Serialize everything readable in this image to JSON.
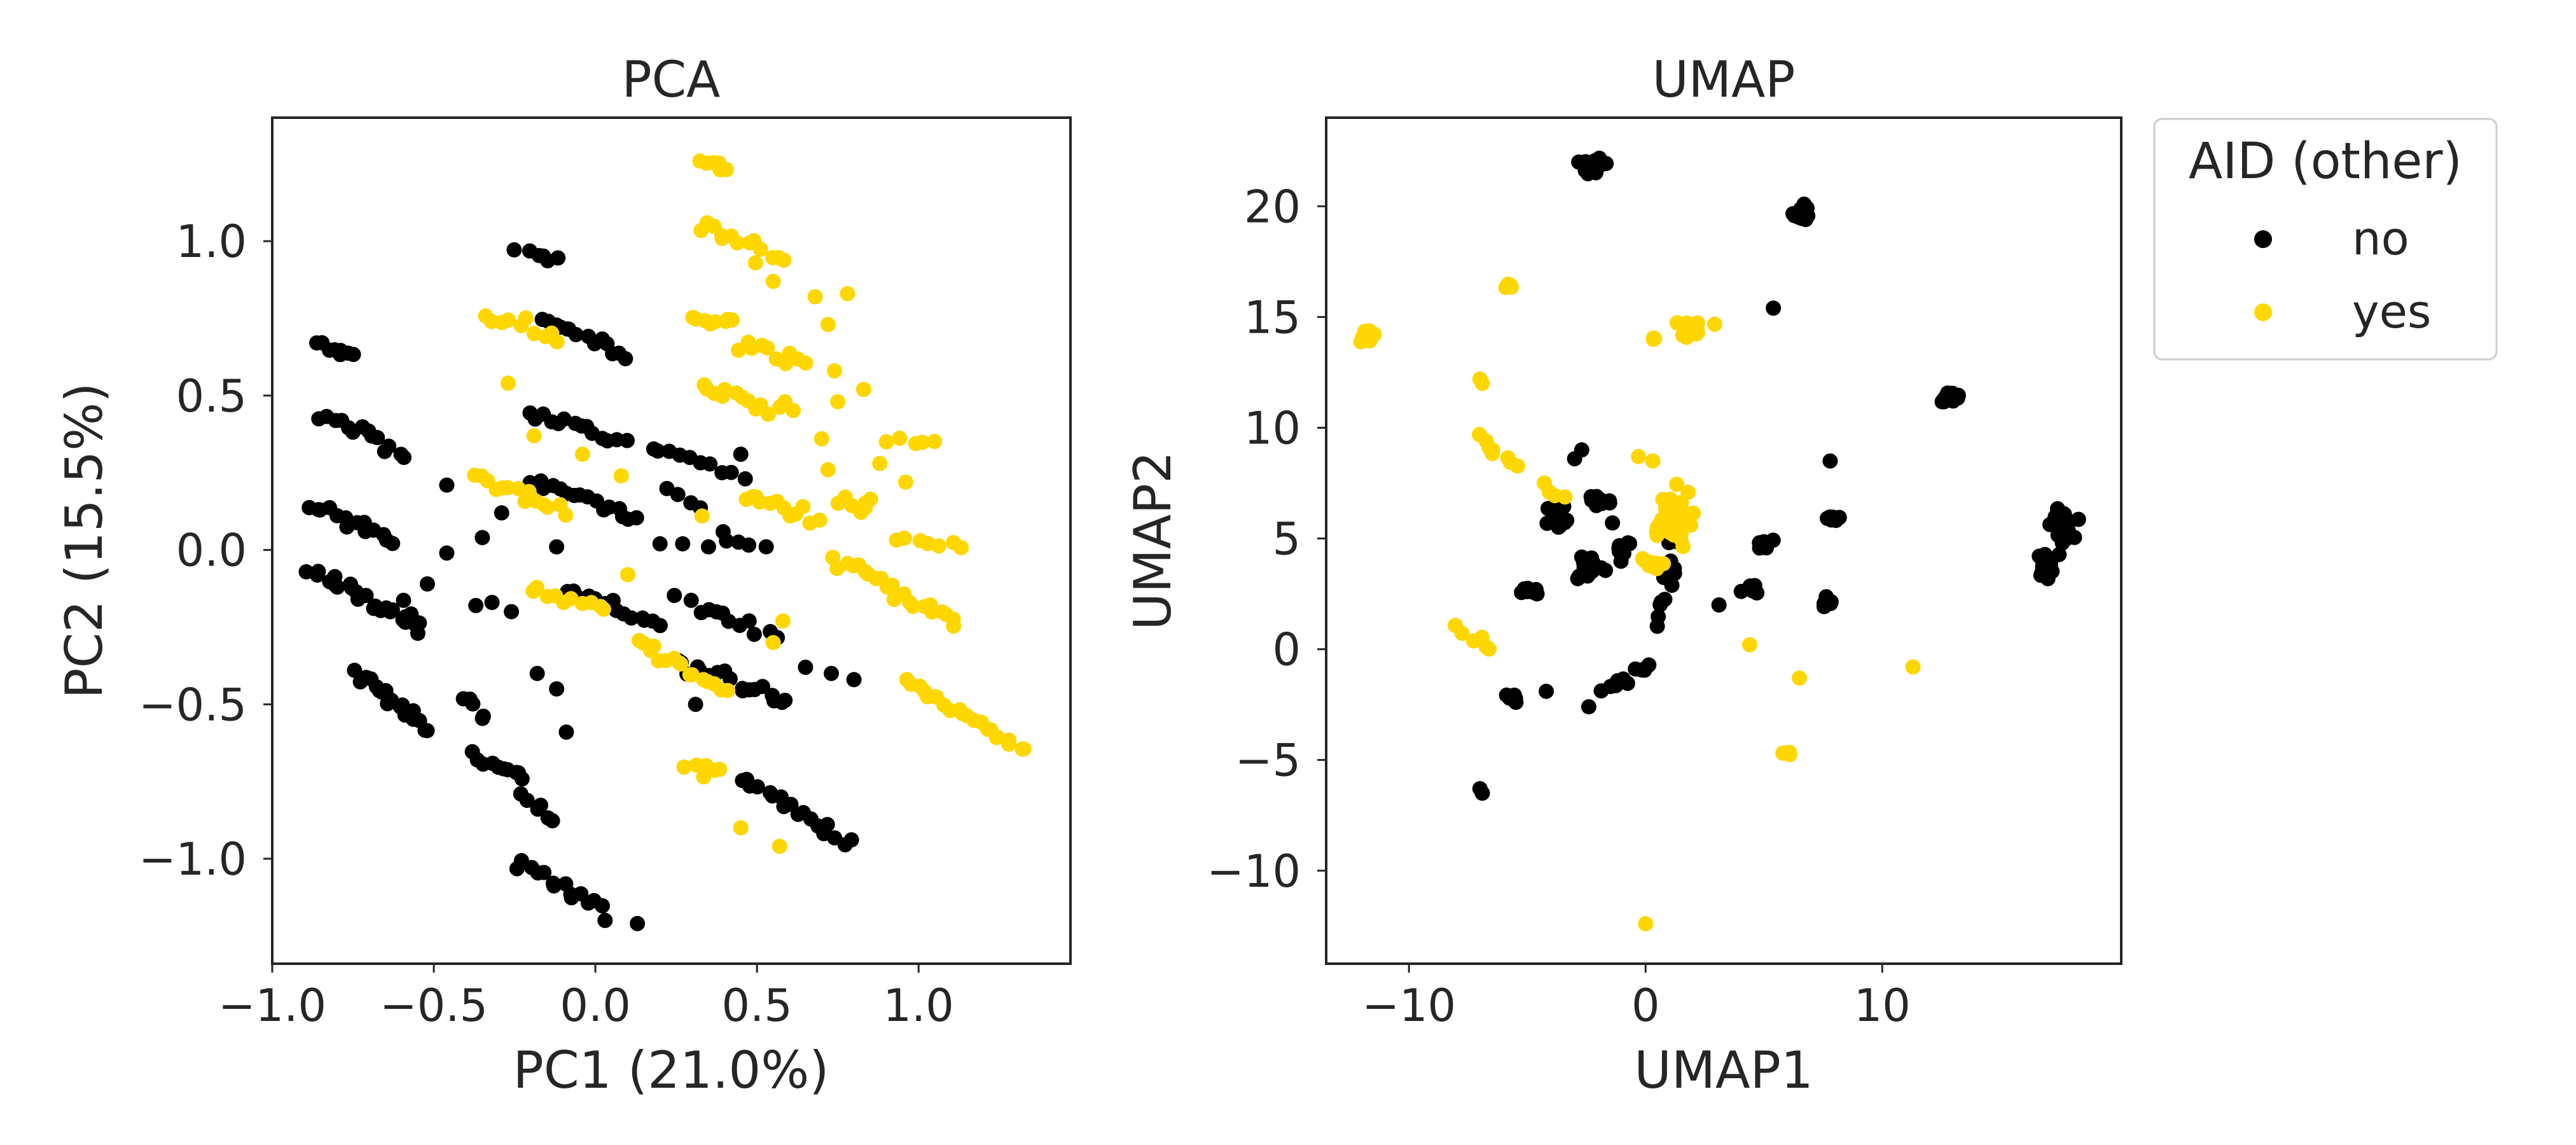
{
  "colors": {
    "no": "#000000",
    "yes": "#FFD700",
    "axes": "#262626"
  },
  "legend": {
    "title": "AID (other)",
    "placement": "outside-right-top",
    "entries": [
      {
        "label": "no",
        "color": "#000000"
      },
      {
        "label": "yes",
        "color": "#FFD700"
      }
    ]
  },
  "chart_data": [
    {
      "type": "scatter",
      "title": "PCA",
      "xlabel": "PC1 (21.0%)",
      "ylabel": "PC2 (15.5%)",
      "xlim": [
        -1.0,
        1.47
      ],
      "ylim": [
        -1.34,
        1.4
      ],
      "xticks": [
        -1.0,
        -0.5,
        0.0,
        0.5,
        1.0
      ],
      "xtick_labels": [
        "−1.0",
        "−0.5",
        "0.0",
        "0.5",
        "1.0"
      ],
      "yticks": [
        -1.0,
        -0.5,
        0.0,
        0.5,
        1.0
      ],
      "ytick_labels": [
        "−1.0",
        "−0.5",
        "0.0",
        "0.5",
        "1.0"
      ],
      "grid": false,
      "series": [
        {
          "name": "no",
          "segments": [
            {
              "x0": -0.86,
              "y0": 0.66,
              "x1": -0.74,
              "y1": 0.63,
              "n": 8
            },
            {
              "x0": -0.85,
              "y0": 0.44,
              "x1": -0.59,
              "y1": 0.32,
              "n": 14
            },
            {
              "x0": -0.88,
              "y0": 0.14,
              "x1": -0.62,
              "y1": 0.03,
              "n": 14
            },
            {
              "x0": -0.88,
              "y0": -0.07,
              "x1": -0.55,
              "y1": -0.24,
              "n": 22
            },
            {
              "x0": -0.74,
              "y0": -0.4,
              "x1": -0.52,
              "y1": -0.58,
              "n": 18
            },
            {
              "x0": -0.4,
              "y0": -0.48,
              "x1": -0.35,
              "y1": -0.55,
              "n": 5
            },
            {
              "x0": -0.38,
              "y0": -0.66,
              "x1": -0.22,
              "y1": -0.75,
              "n": 10
            },
            {
              "x0": -0.23,
              "y0": -0.8,
              "x1": -0.12,
              "y1": -0.88,
              "n": 6
            },
            {
              "x0": -0.24,
              "y0": -1.02,
              "x1": 0.02,
              "y1": -1.15,
              "n": 14
            },
            {
              "x0": -0.24,
              "y0": 0.96,
              "x1": -0.11,
              "y1": 0.95,
              "n": 6
            },
            {
              "x0": -0.17,
              "y0": 0.75,
              "x1": 0.09,
              "y1": 0.63,
              "n": 14
            },
            {
              "x0": -0.21,
              "y0": 0.45,
              "x1": 0.09,
              "y1": 0.35,
              "n": 14
            },
            {
              "x0": -0.2,
              "y0": 0.23,
              "x1": 0.14,
              "y1": 0.1,
              "n": 16
            },
            {
              "x0": -0.09,
              "y0": -0.12,
              "x1": 0.2,
              "y1": -0.25,
              "n": 14
            },
            {
              "x0": 0.27,
              "y0": -0.16,
              "x1": 0.55,
              "y1": -0.27,
              "n": 12
            },
            {
              "x0": 0.25,
              "y0": -0.36,
              "x1": 0.6,
              "y1": -0.5,
              "n": 18
            },
            {
              "x0": 0.45,
              "y0": -0.73,
              "x1": 0.78,
              "y1": -0.95,
              "n": 18
            },
            {
              "x0": 0.16,
              "y0": 0.33,
              "x1": 0.46,
              "y1": 0.24,
              "n": 10
            },
            {
              "x0": 0.22,
              "y0": 0.18,
              "x1": 0.33,
              "y1": 0.15,
              "n": 4
            },
            {
              "x0": 0.38,
              "y0": 0.04,
              "x1": 0.52,
              "y1": 0.02,
              "n": 5
            },
            {
              "x0": -0.6,
              "y0": -0.15,
              "x1": -0.55,
              "y1": -0.28,
              "n": 4
            }
          ],
          "points": [
            [
              -0.46,
              0.21
            ],
            [
              -0.35,
              0.04
            ],
            [
              -0.46,
              -0.01
            ],
            [
              -0.52,
              -0.11
            ],
            [
              -0.37,
              -0.18
            ],
            [
              -0.32,
              -0.17
            ],
            [
              -0.26,
              -0.2
            ],
            [
              -0.18,
              -0.4
            ],
            [
              -0.12,
              -0.45
            ],
            [
              -0.09,
              -0.59
            ],
            [
              0.03,
              -1.2
            ],
            [
              0.13,
              -1.21
            ],
            [
              -0.29,
              0.12
            ],
            [
              -0.12,
              0.01
            ],
            [
              0.2,
              0.02
            ],
            [
              0.27,
              0.02
            ],
            [
              0.35,
              0.01
            ],
            [
              0.45,
              0.31
            ],
            [
              0.65,
              -0.38
            ],
            [
              0.73,
              -0.4
            ],
            [
              0.8,
              -0.42
            ],
            [
              0.31,
              -0.5
            ]
          ]
        },
        {
          "name": "yes",
          "segments": [
            {
              "x0": 0.33,
              "y0": 1.27,
              "x1": 0.41,
              "y1": 1.23,
              "n": 7
            },
            {
              "x0": 0.33,
              "y0": 1.05,
              "x1": 0.58,
              "y1": 0.93,
              "n": 14
            },
            {
              "x0": 0.3,
              "y0": 0.75,
              "x1": 0.43,
              "y1": 0.74,
              "n": 8
            },
            {
              "x0": 0.33,
              "y0": 0.53,
              "x1": 0.6,
              "y1": 0.45,
              "n": 14
            },
            {
              "x0": 0.45,
              "y0": 0.67,
              "x1": 0.65,
              "y1": 0.6,
              "n": 10
            },
            {
              "x0": 0.46,
              "y0": 0.18,
              "x1": 0.68,
              "y1": 0.1,
              "n": 12
            },
            {
              "x0": 0.75,
              "y0": 0.15,
              "x1": 0.86,
              "y1": 0.15,
              "n": 7
            },
            {
              "x0": 0.74,
              "y0": -0.03,
              "x1": 1.12,
              "y1": -0.24,
              "n": 22
            },
            {
              "x0": 0.96,
              "y0": -0.42,
              "x1": 1.33,
              "y1": -0.65,
              "n": 22
            },
            {
              "x0": -0.34,
              "y0": 0.76,
              "x1": -0.11,
              "y1": 0.68,
              "n": 10
            },
            {
              "x0": -0.37,
              "y0": 0.24,
              "x1": -0.1,
              "y1": 0.12,
              "n": 14
            },
            {
              "x0": -0.2,
              "y0": -0.13,
              "x1": 0.03,
              "y1": -0.2,
              "n": 10
            },
            {
              "x0": 0.13,
              "y0": -0.3,
              "x1": 0.4,
              "y1": -0.46,
              "n": 16
            },
            {
              "x0": 0.28,
              "y0": -0.71,
              "x1": 0.39,
              "y1": -0.73,
              "n": 6
            },
            {
              "x0": 0.92,
              "y0": 0.36,
              "x1": 1.05,
              "y1": 0.35,
              "n": 5
            },
            {
              "x0": 0.93,
              "y0": 0.05,
              "x1": 1.13,
              "y1": 0.0,
              "n": 7
            }
          ],
          "points": [
            [
              0.55,
              0.87
            ],
            [
              0.68,
              0.82
            ],
            [
              0.78,
              0.83
            ],
            [
              0.72,
              0.73
            ],
            [
              0.74,
              0.58
            ],
            [
              0.83,
              0.52
            ],
            [
              0.75,
              0.48
            ],
            [
              0.7,
              0.36
            ],
            [
              0.72,
              0.26
            ],
            [
              0.88,
              0.28
            ],
            [
              0.96,
              0.22
            ],
            [
              -0.19,
              0.37
            ],
            [
              -0.04,
              0.31
            ],
            [
              -0.27,
              0.54
            ],
            [
              0.08,
              0.24
            ],
            [
              0.33,
              0.11
            ],
            [
              0.55,
              -0.3
            ],
            [
              0.58,
              -0.23
            ],
            [
              0.45,
              -0.9
            ],
            [
              0.57,
              -0.96
            ],
            [
              0.1,
              -0.08
            ]
          ]
        }
      ]
    },
    {
      "type": "scatter",
      "title": "UMAP",
      "xlabel": "UMAP1",
      "ylabel": "UMAP2",
      "xlim": [
        -13.5,
        20.1
      ],
      "ylim": [
        -14.2,
        24.0
      ],
      "xticks": [
        -10,
        0,
        10
      ],
      "xtick_labels": [
        "−10",
        "0",
        "10"
      ],
      "yticks": [
        -10,
        -5,
        0,
        5,
        10,
        15,
        20
      ],
      "ytick_labels": [
        "−10",
        "−5",
        "0",
        "5",
        "10",
        "15",
        "20"
      ],
      "grid": false,
      "series": [
        {
          "name": "no",
          "clusters": [
            {
              "x": -2.2,
              "y": 21.8,
              "sx": 0.4,
              "sy": 0.35,
              "n": 26
            },
            {
              "x": 6.6,
              "y": 19.7,
              "sx": 0.3,
              "sy": 0.3,
              "n": 20
            },
            {
              "x": 12.9,
              "y": 11.4,
              "sx": 0.4,
              "sy": 0.2,
              "n": 22
            },
            {
              "x": 17.6,
              "y": 5.6,
              "sx": 0.4,
              "sy": 0.6,
              "n": 26
            },
            {
              "x": 16.9,
              "y": 3.8,
              "sx": 0.3,
              "sy": 0.5,
              "n": 22
            },
            {
              "x": 7.8,
              "y": 5.9,
              "sx": 0.3,
              "sy": 0.2,
              "n": 8
            },
            {
              "x": 5.0,
              "y": 4.7,
              "sx": 0.35,
              "sy": 0.2,
              "n": 8
            },
            {
              "x": 7.6,
              "y": 2.1,
              "sx": 0.3,
              "sy": 0.3,
              "n": 8
            },
            {
              "x": 4.5,
              "y": 2.6,
              "sx": 0.4,
              "sy": 0.3,
              "n": 8
            },
            {
              "x": -4.9,
              "y": 2.6,
              "sx": 0.3,
              "sy": 0.2,
              "n": 8
            },
            {
              "x": -5.6,
              "y": -2.2,
              "sx": 0.3,
              "sy": 0.2,
              "n": 8
            },
            {
              "x": -2.0,
              "y": 6.7,
              "sx": 0.5,
              "sy": 0.4,
              "n": 16
            },
            {
              "x": -3.6,
              "y": 6.0,
              "sx": 0.6,
              "sy": 0.6,
              "n": 14
            },
            {
              "x": -2.4,
              "y": 3.8,
              "sx": 0.6,
              "sy": 0.7,
              "n": 16
            },
            {
              "x": -1.0,
              "y": 4.6,
              "sx": 0.4,
              "sy": 0.4,
              "n": 10
            },
            {
              "x": 1.1,
              "y": 3.6,
              "sx": 0.5,
              "sy": 0.4,
              "n": 8
            },
            {
              "x": 1.4,
              "y": 4.8,
              "sx": 0.4,
              "sy": 0.2,
              "n": 5
            }
          ],
          "segments": [
            {
              "x0": -1.8,
              "y0": -2.0,
              "x1": 0.2,
              "y1": -0.9,
              "n": 10
            },
            {
              "x0": 0.4,
              "y0": 1.2,
              "x1": 1.2,
              "y1": 3.0,
              "n": 6
            }
          ],
          "points": [
            [
              -7.0,
              -6.3
            ],
            [
              -6.9,
              -6.5
            ],
            [
              -4.2,
              -1.9
            ],
            [
              -2.4,
              -2.6
            ],
            [
              5.4,
              15.4
            ],
            [
              7.8,
              8.5
            ],
            [
              3.1,
              2.0
            ],
            [
              -2.7,
              9.0
            ],
            [
              -1.4,
              5.7
            ],
            [
              -3.0,
              8.6
            ]
          ]
        },
        {
          "name": "yes",
          "clusters": [
            {
              "x": -11.8,
              "y": 14.2,
              "sx": 0.25,
              "sy": 0.35,
              "n": 10
            },
            {
              "x": -5.7,
              "y": 16.4,
              "sx": 0.15,
              "sy": 0.1,
              "n": 4
            },
            {
              "x": 2.2,
              "y": 14.5,
              "sx": 0.6,
              "sy": 0.4,
              "n": 10
            },
            {
              "x": 0.3,
              "y": 14.1,
              "sx": 0.15,
              "sy": 0.1,
              "n": 3
            },
            {
              "x": 1.0,
              "y": 5.9,
              "sx": 0.9,
              "sy": 1.2,
              "n": 40
            },
            {
              "x": 0.1,
              "y": 3.8,
              "sx": 0.5,
              "sy": 0.3,
              "n": 8
            },
            {
              "x": 5.9,
              "y": -4.7,
              "sx": 0.2,
              "sy": 0.15,
              "n": 4
            }
          ],
          "segments": [
            {
              "x0": -7.1,
              "y0": 9.6,
              "x1": -5.5,
              "y1": 8.2,
              "n": 8
            },
            {
              "x0": -8.1,
              "y0": 0.8,
              "x1": -6.4,
              "y1": 0.1,
              "n": 6
            },
            {
              "x0": -4.4,
              "y0": 7.5,
              "x1": -3.5,
              "y1": 6.8,
              "n": 4
            }
          ],
          "points": [
            [
              -7.0,
              12.2
            ],
            [
              -6.9,
              12.0
            ],
            [
              4.4,
              0.2
            ],
            [
              6.5,
              -1.3
            ],
            [
              11.3,
              -0.8
            ],
            [
              0.0,
              -12.4
            ],
            [
              -0.3,
              8.7
            ],
            [
              0.3,
              8.5
            ]
          ]
        }
      ]
    }
  ]
}
